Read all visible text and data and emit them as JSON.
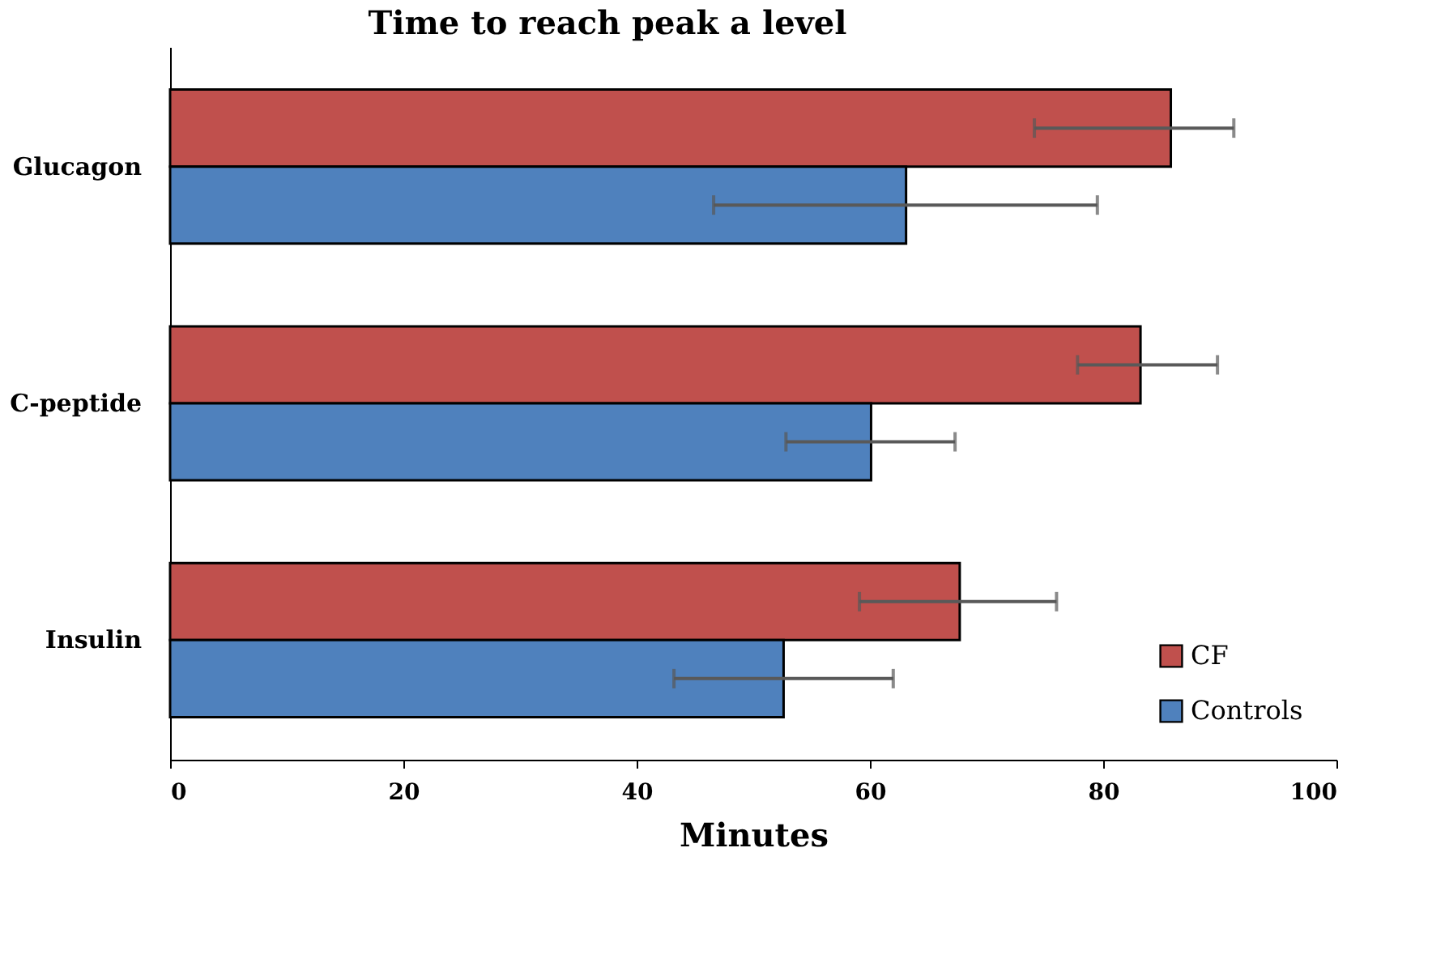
{
  "chart_data": {
    "type": "bar",
    "orientation": "horizontal",
    "title": "Time to reach peak a level",
    "xlabel": "Minutes",
    "categories": [
      "Glucagon",
      "C-peptide",
      "Insulin"
    ],
    "series": [
      {
        "name": "CF",
        "color": "#c0504d",
        "values": [
          85.8,
          83.2,
          67.7
        ],
        "errors": [
          [
            74.1,
            91.2
          ],
          [
            77.8,
            89.8
          ],
          [
            59.1,
            76.0
          ]
        ]
      },
      {
        "name": "Controls",
        "color": "#4f81bd",
        "values": [
          63.1,
          60.1,
          52.6
        ],
        "errors": [
          [
            46.6,
            79.5
          ],
          [
            52.8,
            67.3
          ],
          [
            43.2,
            62.0
          ]
        ]
      }
    ],
    "xlim": [
      0,
      100
    ],
    "xticks": [
      0,
      20,
      40,
      60,
      80,
      100
    ],
    "grid": false,
    "legend": "bottom right"
  }
}
